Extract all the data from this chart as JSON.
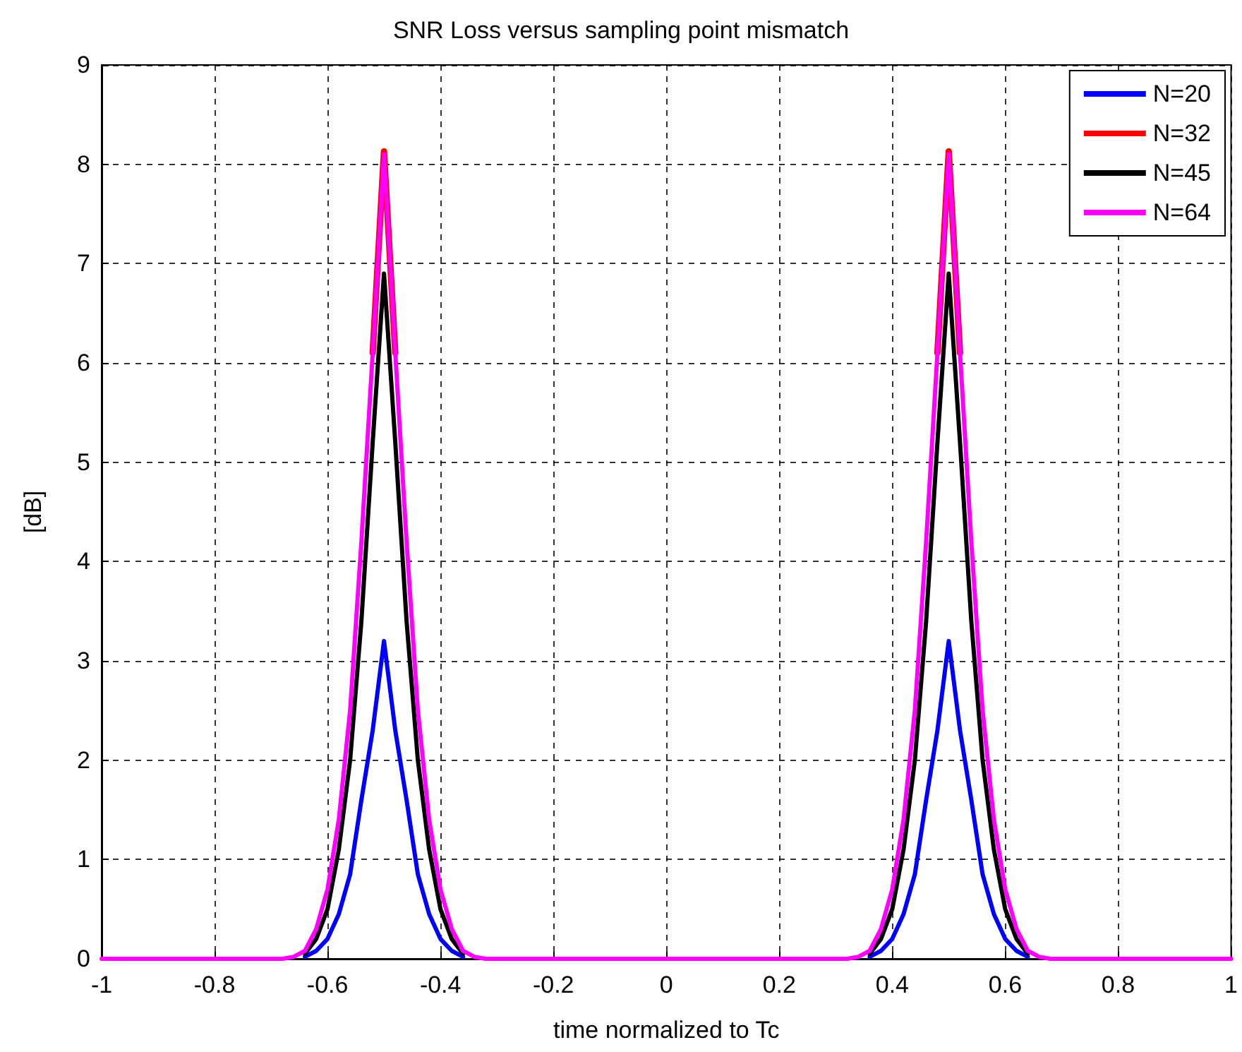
{
  "chart_data": {
    "type": "line",
    "title": "SNR Loss versus sampling point mismatch",
    "xlabel": "time normalized to Tc",
    "ylabel": "[dB]",
    "x": [
      -1,
      -0.7,
      -0.68,
      -0.66,
      -0.64,
      -0.62,
      -0.6,
      -0.58,
      -0.56,
      -0.54,
      -0.52,
      -0.5,
      -0.48,
      -0.46,
      -0.44,
      -0.42,
      -0.4,
      -0.38,
      -0.36,
      -0.34,
      -0.32,
      -0.3,
      0.3,
      0.32,
      0.34,
      0.36,
      0.38,
      0.4,
      0.42,
      0.44,
      0.46,
      0.48,
      0.5,
      0.52,
      0.54,
      0.56,
      0.58,
      0.6,
      0.62,
      0.64,
      0.66,
      0.68,
      0.7,
      1
    ],
    "series": [
      {
        "name": "N=20",
        "color": "#0000ff",
        "values": [
          null,
          null,
          null,
          null,
          0.02,
          0.08,
          0.2,
          0.45,
          0.85,
          1.6,
          2.3,
          3.2,
          2.3,
          1.6,
          0.85,
          0.45,
          0.2,
          0.08,
          0.02,
          null,
          null,
          null,
          null,
          null,
          null,
          0.02,
          0.08,
          0.2,
          0.45,
          0.85,
          1.6,
          2.3,
          3.2,
          2.3,
          1.6,
          0.85,
          0.45,
          0.2,
          0.08,
          0.02,
          null,
          null,
          null,
          null
        ]
      },
      {
        "name": "N=32",
        "color": "#ff0000",
        "values": [
          null,
          null,
          null,
          null,
          null,
          null,
          null,
          null,
          null,
          null,
          6.1,
          8.13,
          6.1,
          null,
          null,
          null,
          null,
          null,
          null,
          null,
          null,
          null,
          null,
          null,
          null,
          null,
          null,
          null,
          null,
          null,
          null,
          6.1,
          8.13,
          6.1,
          null,
          null,
          null,
          null,
          null,
          null,
          null,
          null,
          null,
          null
        ]
      },
      {
        "name": "N=45",
        "color": "#000000",
        "values": [
          null,
          null,
          null,
          null,
          0.05,
          0.2,
          0.5,
          1.1,
          2.0,
          3.4,
          5.2,
          6.9,
          5.2,
          3.4,
          2.0,
          1.1,
          0.5,
          0.2,
          0.05,
          null,
          null,
          null,
          null,
          null,
          null,
          0.05,
          0.2,
          0.5,
          1.1,
          2.0,
          3.4,
          5.2,
          6.9,
          5.2,
          3.4,
          2.0,
          1.1,
          0.5,
          0.2,
          0.05,
          null,
          null,
          null,
          null
        ]
      },
      {
        "name": "N=64",
        "color": "#ff00ff",
        "values": [
          0,
          0,
          0,
          0.02,
          0.08,
          0.3,
          0.7,
          1.4,
          2.5,
          4.2,
          6.1,
          8.1,
          6.1,
          4.2,
          2.5,
          1.4,
          0.7,
          0.3,
          0.08,
          0.02,
          0,
          0,
          0,
          0,
          0.02,
          0.08,
          0.3,
          0.7,
          1.4,
          2.5,
          4.2,
          6.1,
          8.1,
          6.1,
          4.2,
          2.5,
          1.4,
          0.7,
          0.3,
          0.08,
          0.02,
          0,
          0,
          0
        ]
      }
    ],
    "xlim": [
      -1,
      1
    ],
    "xticks": [
      -1,
      -0.8,
      -0.6,
      -0.4,
      -0.2,
      0,
      0.2,
      0.4,
      0.6,
      0.8,
      1
    ],
    "ylim": [
      0,
      9
    ],
    "yticks": [
      0,
      1,
      2,
      3,
      4,
      5,
      6,
      7,
      8,
      9
    ],
    "grid": true,
    "legend": "top right",
    "marker": "none",
    "line_style": "solid"
  }
}
